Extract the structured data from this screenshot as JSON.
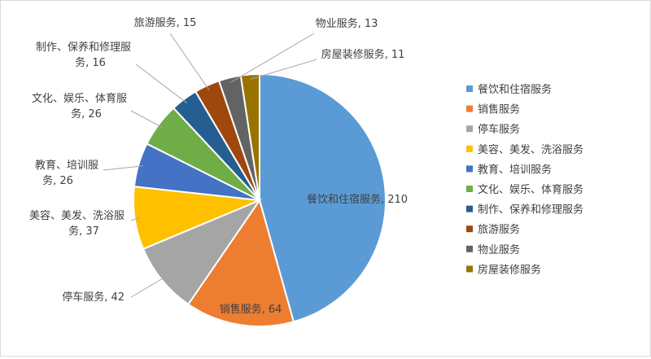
{
  "chart_data": {
    "type": "pie",
    "title": "",
    "categories": [
      "餐饮和住宿服务",
      "销售服务",
      "停车服务",
      "美容、美发、洗浴服务",
      "教育、培训服务",
      "文化、娱乐、体育服务",
      "制作、保养和修理服务",
      "旅游服务",
      "物业服务",
      "房屋装修服务"
    ],
    "values": [
      210,
      64,
      42,
      37,
      26,
      26,
      16,
      15,
      13,
      11
    ],
    "colors": [
      "#5B9BD5",
      "#ED7D31",
      "#A5A5A5",
      "#FFC000",
      "#4472C4",
      "#70AD47",
      "#255E91",
      "#9E480E",
      "#636363",
      "#997300"
    ],
    "data_labels": [
      [
        "餐饮和住宿服务, 210"
      ],
      [
        "销售服务, 64"
      ],
      [
        "停车服务, 42"
      ],
      [
        "美容、美发、洗浴服",
        "务, 37"
      ],
      [
        "教育、培训服",
        "务, 26"
      ],
      [
        "文化、娱乐、体育服",
        "务, 26"
      ],
      [
        "制作、保养和修理服",
        "务, 16"
      ],
      [
        "旅游服务, 15"
      ],
      [
        "物业服务, 13"
      ],
      [
        "房屋装修服务, 11"
      ]
    ],
    "legend_position": "right"
  }
}
